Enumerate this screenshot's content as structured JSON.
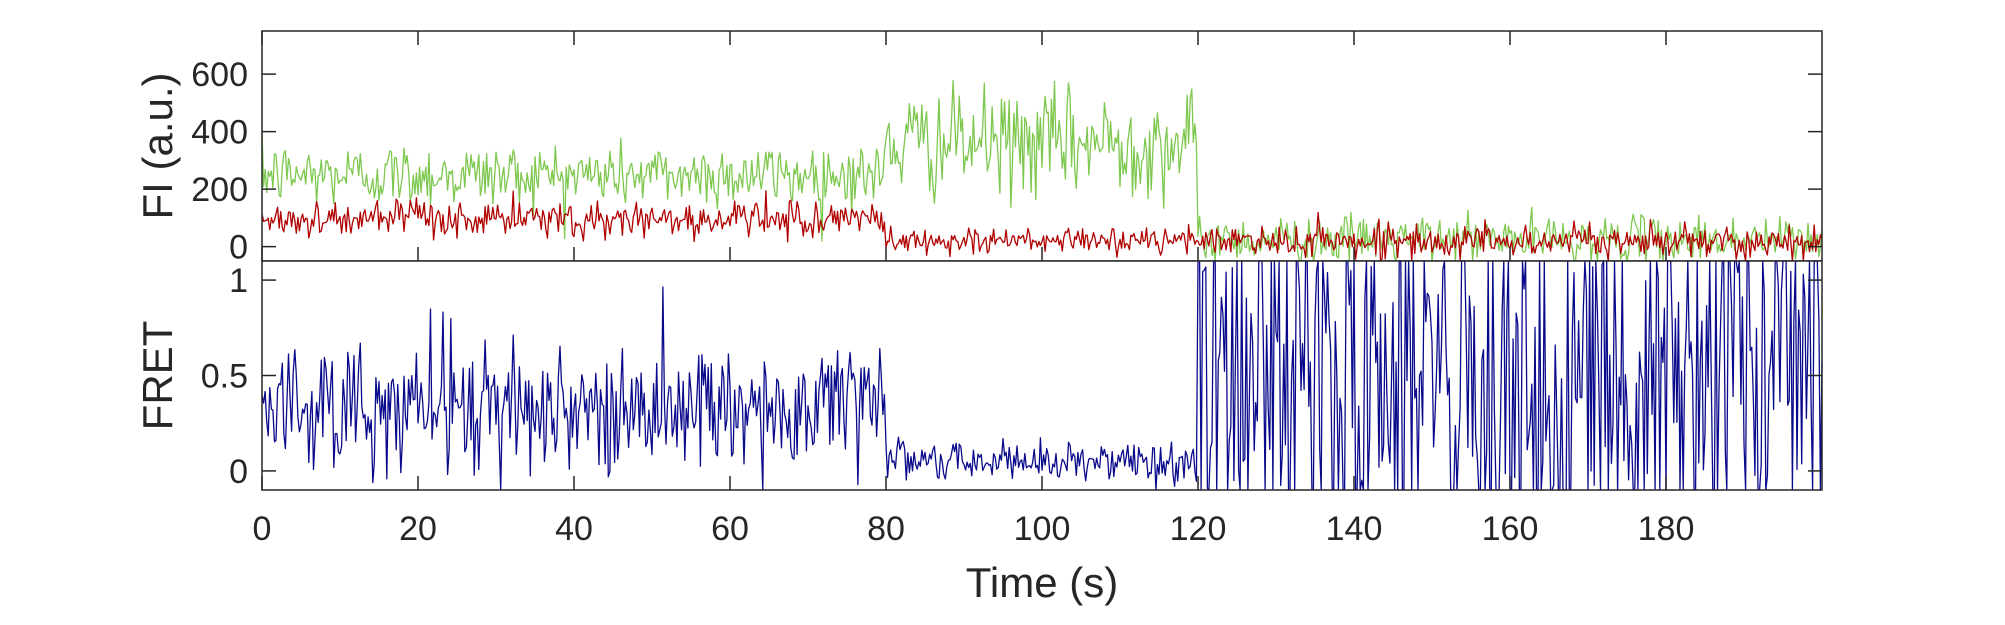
{
  "chart_data": [
    {
      "type": "line",
      "panel": "top",
      "ylabel": "FI (a.u.)",
      "xlim": [
        0,
        200
      ],
      "ylim": [
        -50,
        750
      ],
      "yticks": [
        0,
        200,
        400,
        600
      ],
      "ytick_labels": [
        "0",
        "200",
        "400",
        "600"
      ],
      "colors": {
        "donor": "#7ec850",
        "acceptor": "#b00000"
      },
      "series": [
        {
          "key": "donor",
          "segments": [
            {
              "t0": 0,
              "t1": 80,
              "mean": 250,
              "noise": 55
            },
            {
              "t0": 80,
              "t1": 120,
              "mean": 360,
              "noise": 90
            },
            {
              "t0": 120,
              "t1": 200,
              "mean": 25,
              "noise": 40
            }
          ]
        },
        {
          "key": "acceptor",
          "segments": [
            {
              "t0": 0,
              "t1": 80,
              "mean": 95,
              "noise": 32
            },
            {
              "t0": 80,
              "t1": 120,
              "mean": 20,
              "noise": 22
            },
            {
              "t0": 120,
              "t1": 200,
              "mean": 20,
              "noise": 28
            }
          ]
        }
      ]
    },
    {
      "type": "line",
      "panel": "bottom",
      "xlabel": "Time (s)",
      "ylabel": "FRET",
      "xlim": [
        0,
        200
      ],
      "ylim": [
        -0.1,
        1.1
      ],
      "xticks": [
        0,
        20,
        40,
        60,
        80,
        100,
        120,
        140,
        160,
        180
      ],
      "xtick_labels": [
        "0",
        "20",
        "40",
        "60",
        "80",
        "100",
        "120",
        "140",
        "160",
        "180"
      ],
      "yticks": [
        0,
        0.5,
        1
      ],
      "ytick_labels": [
        "0",
        "0.5",
        "1"
      ],
      "colors": {
        "fret": "#0a0a8c"
      },
      "series": [
        {
          "key": "fret",
          "segments": [
            {
              "t0": 0,
              "t1": 80,
              "mean": 0.33,
              "noise": 0.17
            },
            {
              "t0": 80,
              "t1": 120,
              "mean": 0.05,
              "noise": 0.06
            },
            {
              "t0": 120,
              "t1": 200,
              "mean": 0.5,
              "noise": 0.75
            }
          ]
        }
      ]
    }
  ]
}
